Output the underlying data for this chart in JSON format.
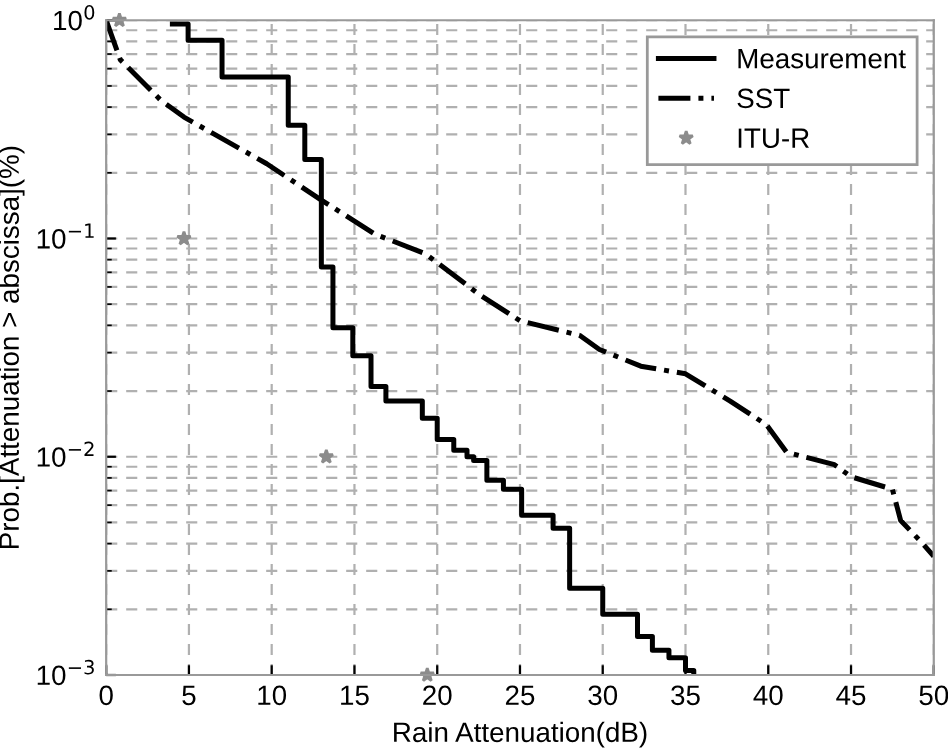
{
  "chart_data": {
    "type": "line",
    "xlabel": "Rain Attenuation(dB)",
    "ylabel": "Prob.[Attenuation > abscissa](%)",
    "log": "y",
    "xlim": [
      0,
      50
    ],
    "xticks": [
      0,
      5,
      10,
      15,
      20,
      25,
      30,
      35,
      40,
      45,
      50
    ],
    "ylim": [
      0.001,
      1
    ],
    "yticks": [
      {
        "value": 0.001,
        "label": "10$^{−3}$"
      },
      {
        "value": 0.01,
        "label": "10$^{−2}$"
      },
      {
        "value": 0.1,
        "label": "10$^{−1}$"
      },
      {
        "value": 1,
        "label": "10$^{0}$"
      }
    ],
    "grid": true,
    "legend": "top right",
    "series": [
      {
        "name": "Measurement",
        "type": "step",
        "color": "#000000",
        "line_style": "solid",
        "marker": "none",
        "x": [
          4.0,
          4.95,
          7.0,
          11.0,
          12.0,
          13.0,
          13.7,
          14.9,
          16.0,
          16.9,
          19.1,
          20.0,
          21.0,
          21.8,
          22.2,
          23.0,
          24.0,
          25.1,
          27.0,
          28.0,
          30.0,
          32.1,
          33.0,
          34.0,
          35.0,
          35.5
        ],
        "values": [
          0.96,
          0.81,
          0.55,
          0.33,
          0.23,
          0.074,
          0.039,
          0.029,
          0.021,
          0.018,
          0.015,
          0.012,
          0.0107,
          0.01,
          0.0096,
          0.0078,
          0.0071,
          0.0054,
          0.0047,
          0.0025,
          0.0019,
          0.0015,
          0.0013,
          0.0012,
          0.00105,
          0.001
        ]
      },
      {
        "name": "SST",
        "color": "#000000",
        "line_style": "dashdot",
        "marker": "none",
        "x": [
          0,
          0.85,
          3.3,
          4.7,
          9.7,
          13,
          16.2,
          19.3,
          22.6,
          25,
          28.6,
          29.8,
          32.3,
          35,
          37.7,
          39.9,
          41.1,
          44,
          45,
          47.5,
          48,
          49.2,
          50
        ],
        "values": [
          1,
          0.66,
          0.43,
          0.36,
          0.22,
          0.15,
          0.105,
          0.085,
          0.055,
          0.042,
          0.036,
          0.031,
          0.026,
          0.024,
          0.018,
          0.014,
          0.0105,
          0.0092,
          0.0081,
          0.0071,
          0.0051,
          0.0041,
          0.0035
        ]
      },
      {
        "name": "ITU-R",
        "type": "scatter",
        "color": "#8c8c8c",
        "marker": "star",
        "x": [
          0.8,
          4.7,
          13.3,
          19.4
        ],
        "values": [
          1,
          0.1,
          0.01,
          0.001
        ]
      }
    ]
  }
}
